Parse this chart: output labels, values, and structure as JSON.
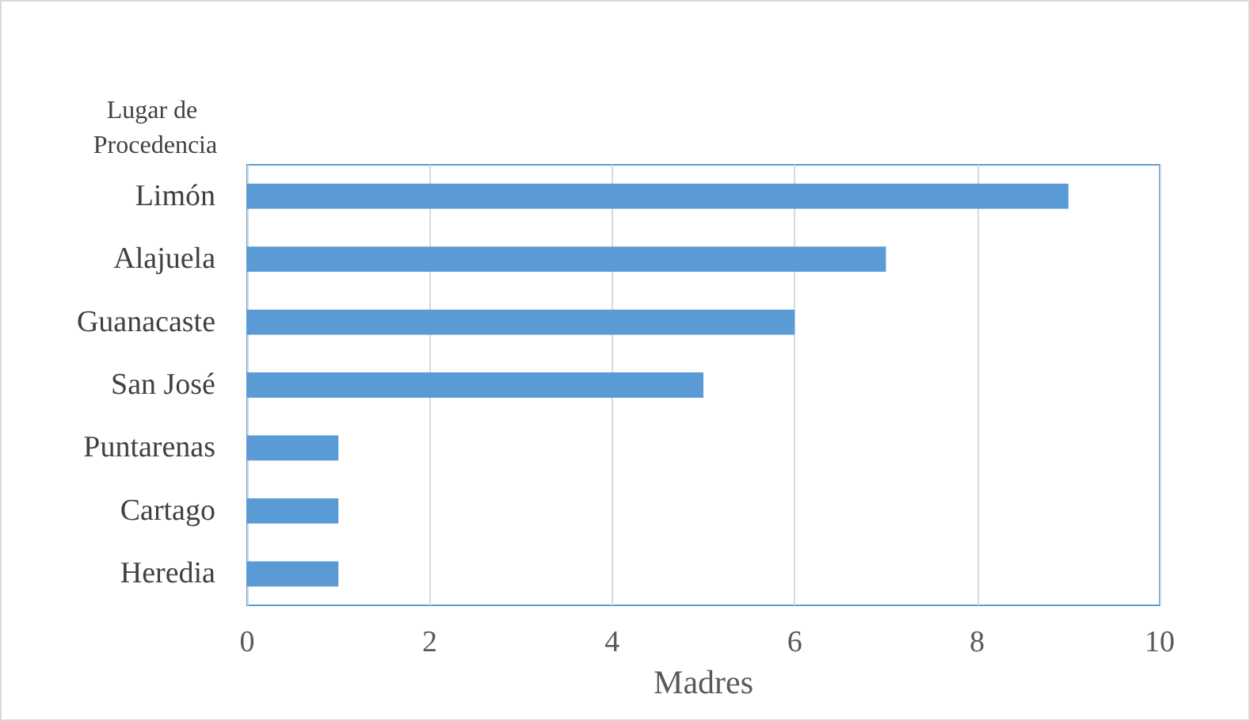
{
  "chart_data": {
    "type": "bar",
    "orientation": "horizontal",
    "categories": [
      "Limón",
      "Alajuela",
      "Guanacaste",
      "San José",
      "Puntarenas",
      "Cartago",
      "Heredia"
    ],
    "values": [
      9,
      7,
      6,
      5,
      1,
      1,
      1
    ],
    "color": "#5b9bd5",
    "xlim": [
      0,
      10
    ],
    "xticks": [
      0,
      2,
      4,
      6,
      8,
      10
    ],
    "grid": "x",
    "xlabel": "Madres",
    "ylabel": "Lugar de Procedencia"
  }
}
